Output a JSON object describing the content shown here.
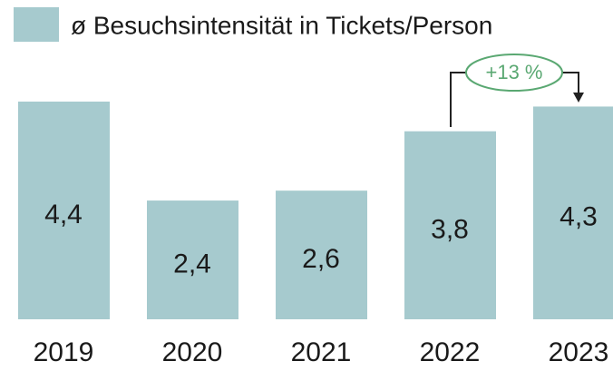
{
  "chart_data": {
    "type": "bar",
    "series": [
      {
        "name": "ø Besuchsintensität in Tickets/Person",
        "color": "#a6cace",
        "values": [
          4.4,
          2.4,
          2.6,
          3.8,
          4.3
        ],
        "value_labels": [
          "4,4",
          "2,4",
          "2,6",
          "3,8",
          "4,3"
        ]
      }
    ],
    "categories": [
      "2019",
      "2020",
      "2021",
      "2022",
      "2023"
    ],
    "annotation": "+13 %",
    "annotation_color": "#5aa872"
  }
}
